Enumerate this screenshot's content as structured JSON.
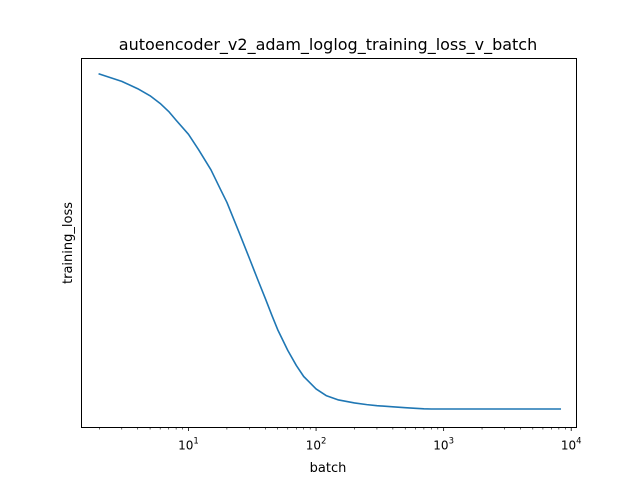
{
  "chart_data": {
    "type": "line",
    "title": "autoencoder_v2_adam_loglog_training_loss_v_batch",
    "xlabel": "batch",
    "ylabel": "training_loss",
    "x_scale": "log",
    "y_scale": "log",
    "xlim": [
      1.45,
      11000
    ],
    "grid": false,
    "legend": "none",
    "line_color": "#1f77b4",
    "x_ticks": [
      {
        "value": 10,
        "base": "10",
        "exponent": "1"
      },
      {
        "value": 100,
        "base": "10",
        "exponent": "2"
      },
      {
        "value": 1000,
        "base": "10",
        "exponent": "3"
      },
      {
        "value": 10000,
        "base": "10",
        "exponent": "4"
      }
    ],
    "y_tick_labels": [],
    "relative_level_note": "y values are relative log-levels: 1 = start of curve, 0 = final plateau (no y tick labels shown)",
    "series": [
      {
        "color": "#1f77b4",
        "x": [
          2,
          3,
          4,
          5,
          6,
          7,
          8,
          10,
          12,
          15,
          18,
          20,
          25,
          30,
          35,
          40,
          45,
          50,
          60,
          70,
          80,
          100,
          120,
          150,
          200,
          250,
          300,
          400,
          500,
          600,
          700,
          800,
          1000,
          2000,
          3000,
          5000,
          8200
        ],
        "y": [
          1.0,
          0.978,
          0.956,
          0.935,
          0.912,
          0.888,
          0.862,
          0.82,
          0.774,
          0.714,
          0.652,
          0.617,
          0.526,
          0.45,
          0.385,
          0.33,
          0.28,
          0.237,
          0.175,
          0.13,
          0.097,
          0.06,
          0.04,
          0.027,
          0.018,
          0.013,
          0.01,
          0.0065,
          0.004,
          0.002,
          0.0005,
          0.0,
          0.0,
          0.0,
          0.0,
          0.0,
          0.0
        ]
      }
    ]
  }
}
